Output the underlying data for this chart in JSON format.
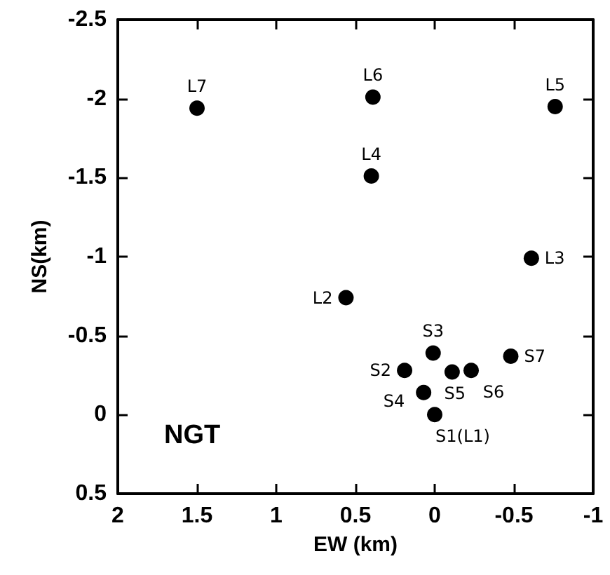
{
  "chart_data": {
    "type": "scatter",
    "xlabel": "EW (km)",
    "ylabel": "NS(km)",
    "annotations": [
      "NGT"
    ],
    "xlim": [
      2,
      -1
    ],
    "xticks": [
      2,
      1.5,
      1,
      0.5,
      0,
      -0.5,
      -1
    ],
    "ylim": [
      0.5,
      -2.5
    ],
    "yticks": [
      0.5,
      0,
      -0.5,
      -1,
      -1.5,
      -2,
      -2.5
    ],
    "grid": false,
    "marker": "circle",
    "series": [
      {
        "color": "#000000",
        "x": [
          1.5,
          0.39,
          -0.76,
          0.4,
          -0.61,
          0.56,
          0.01,
          0.19,
          -0.11,
          -0.23,
          -0.48,
          0.07,
          0
        ],
        "values": [
          -1.94,
          -2.01,
          -1.95,
          -1.51,
          -0.99,
          -0.74,
          -0.39,
          -0.28,
          -0.27,
          -0.28,
          -0.37,
          -0.14,
          0
        ],
        "value_labels": [
          "L7",
          "L6",
          "L5",
          "L4",
          "L3",
          "L2",
          "S3",
          "S2",
          "S5",
          "S6",
          "S7",
          "S4",
          "S1(L1)"
        ]
      }
    ]
  }
}
